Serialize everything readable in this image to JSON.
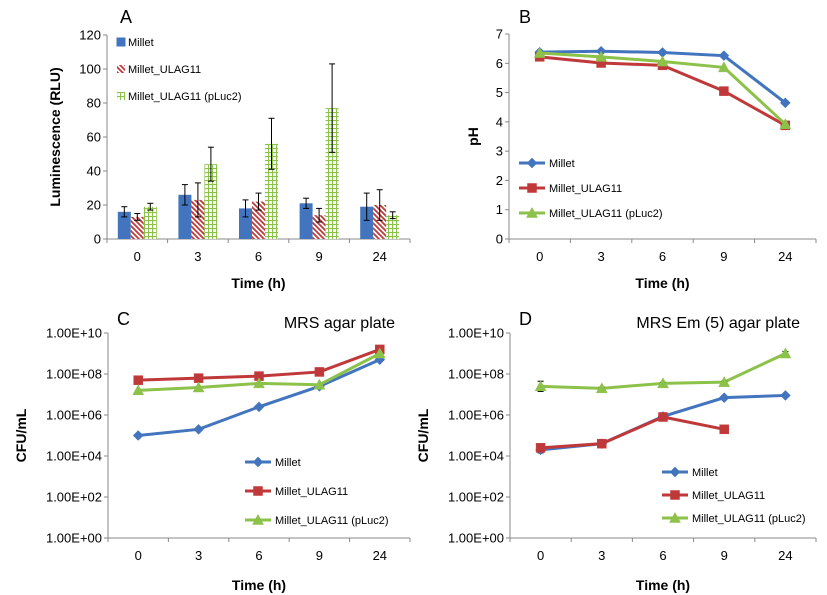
{
  "colors": {
    "millet": "#4275BE",
    "ulag11": "#C0393A",
    "pluc2": "#8DC24A",
    "axis": "#888888",
    "error": "#000000"
  },
  "chart_data": [
    {
      "panel": "A",
      "type": "bar",
      "panel_label": "A",
      "title": "",
      "xlabel": "Time (h)",
      "ylabel": "Luminescence (RLU)",
      "categories": [
        "0",
        "3",
        "6",
        "9",
        "24"
      ],
      "ylim": [
        0,
        120
      ],
      "yticks": [
        "0",
        "20",
        "40",
        "60",
        "80",
        "100",
        "120"
      ],
      "legend_position": "top-left",
      "series": [
        {
          "name": "Millet",
          "values": [
            16,
            26,
            18,
            21,
            19
          ],
          "errors": [
            3,
            6,
            5,
            3,
            8
          ],
          "pattern": "solid"
        },
        {
          "name": "Millet_ULAG11",
          "values": [
            13,
            23,
            22,
            14,
            20
          ],
          "errors": [
            2,
            10,
            5,
            4,
            9
          ],
          "pattern": "diagonal"
        },
        {
          "name": "Millet_ULAG11 (pLuc2)",
          "values": [
            19,
            44,
            56,
            77,
            14
          ],
          "errors": [
            2,
            10,
            15,
            26,
            2
          ],
          "pattern": "grid"
        }
      ]
    },
    {
      "panel": "B",
      "type": "line",
      "panel_label": "B",
      "title": "",
      "xlabel": "Time (h)",
      "ylabel": "pH",
      "categories": [
        "0",
        "3",
        "6",
        "9",
        "24"
      ],
      "ylim": [
        0,
        7
      ],
      "yticks": [
        "0",
        "1",
        "2",
        "3",
        "4",
        "5",
        "6",
        "7"
      ],
      "legend_position": "bottom-left",
      "series": [
        {
          "name": "Millet",
          "values": [
            6.38,
            6.41,
            6.37,
            6.26,
            4.65
          ],
          "marker": "diamond"
        },
        {
          "name": "Millet_ULAG11",
          "values": [
            6.22,
            6.01,
            5.93,
            5.05,
            3.88
          ],
          "marker": "square"
        },
        {
          "name": "Millet_ULAG11 (pLuc2)",
          "values": [
            6.35,
            6.22,
            6.06,
            5.86,
            3.92
          ],
          "marker": "triangle"
        }
      ]
    },
    {
      "panel": "C",
      "type": "line",
      "panel_label": "C",
      "title": "MRS agar plate",
      "xlabel": "Time (h)",
      "ylabel": "CFU/mL",
      "categories": [
        "0",
        "3",
        "6",
        "9",
        "24"
      ],
      "yscale": "log",
      "ylim": [
        1,
        10000000000
      ],
      "yticks": [
        "1.00E+00",
        "1.00E+02",
        "1.00E+04",
        "1.00E+06",
        "1.00E+08",
        "1.00E+10"
      ],
      "legend_position": "bottom-right",
      "series": [
        {
          "name": "Millet",
          "values": [
            100000,
            200000,
            2500000,
            25000000,
            500000000
          ],
          "marker": "diamond"
        },
        {
          "name": "Millet_ULAG11",
          "values": [
            50000000,
            63000000,
            79000000,
            126000000,
            1580000000
          ],
          "marker": "square"
        },
        {
          "name": "Millet_ULAG11 (pLuc2)",
          "values": [
            16000000,
            22000000,
            35000000,
            30000000,
            1000000000
          ],
          "marker": "triangle"
        }
      ]
    },
    {
      "panel": "D",
      "type": "line",
      "panel_label": "D",
      "title": "MRS Em (5) agar plate",
      "xlabel": "Time (h)",
      "ylabel": "CFU/mL",
      "categories": [
        "0",
        "3",
        "6",
        "9",
        "24"
      ],
      "yscale": "log",
      "ylim": [
        1,
        10000000000
      ],
      "yticks": [
        "1.00E+00",
        "1.00E+02",
        "1.00E+04",
        "1.00E+06",
        "1.00E+08",
        "1.00E+10"
      ],
      "legend_position": "bottom-right",
      "series": [
        {
          "name": "Millet",
          "values": [
            20000,
            40000,
            850000,
            7000000,
            9000000
          ],
          "marker": "diamond",
          "errors_log": [
            0.15,
            0.1,
            0.1,
            0.05,
            0.05
          ]
        },
        {
          "name": "Millet_ULAG11",
          "values": [
            25000,
            40000,
            800000,
            200000,
            null
          ],
          "marker": "square",
          "errors_log": [
            0.1,
            0.1,
            0.1,
            0.05,
            0
          ]
        },
        {
          "name": "Millet_ULAG11 (pLuc2)",
          "values": [
            25000000,
            20000000,
            35000000,
            40000000,
            1000000000
          ],
          "marker": "triangle",
          "errors_log": [
            0.25,
            0.05,
            0.05,
            0.05,
            0.1
          ]
        }
      ]
    }
  ]
}
